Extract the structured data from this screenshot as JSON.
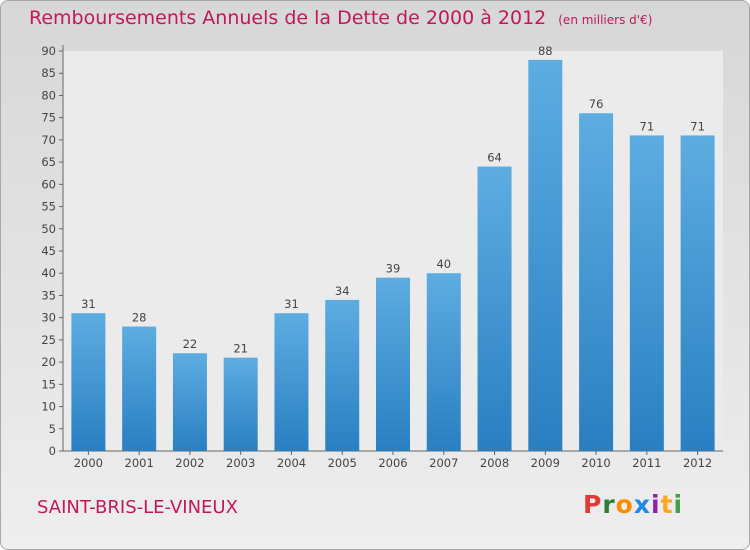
{
  "header": {
    "title": "Remboursements Annuels de la Dette de 2000 à 2012",
    "unit": "(en milliers d'€)"
  },
  "footer": {
    "place": "SAINT-BRIS-LE-VINEUX",
    "logo": {
      "letters": [
        "P",
        "r",
        "o",
        "x",
        "i",
        "t",
        "i"
      ],
      "colors": [
        "#e53935",
        "#2e7d32",
        "#fb8c00",
        "#1e88e5",
        "#8e24aa",
        "#f9a825",
        "#43a047"
      ]
    }
  },
  "colors": {
    "accent": "#c2185b",
    "bar_top": "#5dade2",
    "bar_bottom": "#2a7fc1"
  },
  "chart_data": {
    "type": "bar",
    "title": "Remboursements Annuels de la Dette de 2000 à 2012",
    "categories": [
      "2000",
      "2001",
      "2002",
      "2003",
      "2004",
      "2005",
      "2006",
      "2007",
      "2008",
      "2009",
      "2010",
      "2011",
      "2012"
    ],
    "values": [
      31,
      28,
      22,
      21,
      31,
      34,
      39,
      40,
      64,
      88,
      76,
      71,
      71
    ],
    "ylim": [
      0,
      90
    ],
    "yticks": [
      0,
      5,
      10,
      15,
      20,
      25,
      30,
      35,
      40,
      45,
      50,
      55,
      60,
      65,
      70,
      75,
      80,
      85,
      90
    ],
    "grid": false
  }
}
